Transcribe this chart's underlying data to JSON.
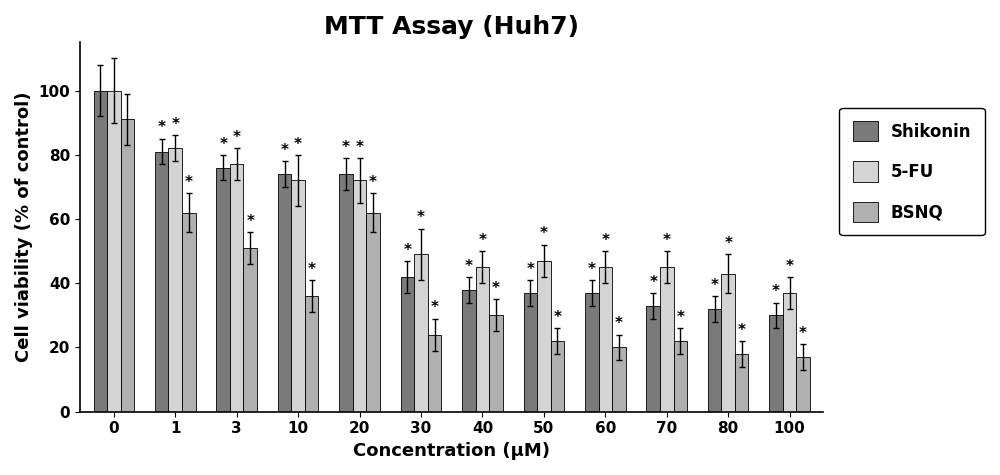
{
  "title": "MTT Assay (Huh7)",
  "xlabel": "Concentration (μM)",
  "ylabel": "Cell viability (% of control)",
  "categories": [
    0,
    1,
    3,
    10,
    20,
    30,
    40,
    50,
    60,
    70,
    80,
    100
  ],
  "shikonin": [
    100,
    81,
    76,
    74,
    74,
    42,
    38,
    37,
    37,
    33,
    32,
    30
  ],
  "fivefu": [
    100,
    82,
    77,
    72,
    72,
    49,
    45,
    47,
    45,
    45,
    43,
    37
  ],
  "bsnq": [
    91,
    62,
    51,
    36,
    62,
    24,
    30,
    22,
    20,
    22,
    18,
    17
  ],
  "shikonin_err": [
    8,
    4,
    4,
    4,
    5,
    5,
    4,
    4,
    4,
    4,
    4,
    4
  ],
  "fivefu_err": [
    10,
    4,
    5,
    8,
    7,
    8,
    5,
    5,
    5,
    5,
    6,
    5
  ],
  "bsnq_err": [
    8,
    6,
    5,
    5,
    6,
    5,
    5,
    4,
    4,
    4,
    4,
    4
  ],
  "color_shikonin": "#7a7a7a",
  "color_fivefu": "#d4d4d4",
  "color_bsnq": "#b0b0b0",
  "hatch_shikonin": "",
  "hatch_fivefu": "",
  "hatch_bsnq": "",
  "ylim": [
    0,
    115
  ],
  "yticks": [
    0,
    20,
    40,
    60,
    80,
    100
  ],
  "bar_width": 0.22,
  "title_fontsize": 18,
  "axis_label_fontsize": 13,
  "tick_fontsize": 11,
  "legend_fontsize": 12,
  "star_fontsize": 11
}
